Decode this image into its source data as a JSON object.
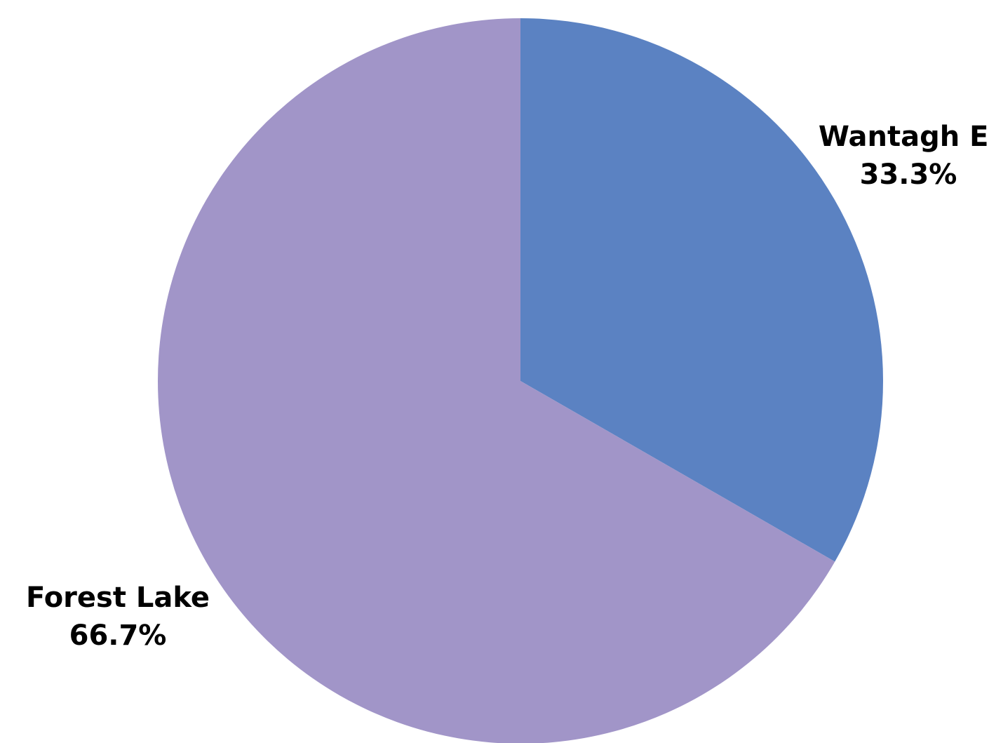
{
  "chart_data": {
    "type": "pie",
    "title": "",
    "slices": [
      {
        "label": "Wantagh El",
        "value": 33.3,
        "value_label": "33.3%",
        "color": "#5b82c2"
      },
      {
        "label": "Forest Lake",
        "value": 66.7,
        "value_label": "66.7%",
        "color": "#a195c8"
      }
    ],
    "start_angle": "12 o'clock",
    "direction": "clockwise"
  }
}
